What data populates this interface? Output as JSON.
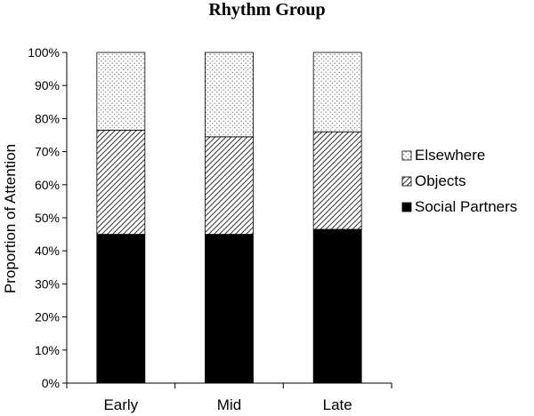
{
  "chart_data": {
    "type": "bar",
    "stacked": true,
    "title": "Rhythm Group",
    "xlabel": "",
    "ylabel": "Proportion of Attention",
    "categories": [
      "Early",
      "Mid",
      "Late"
    ],
    "ylim": [
      0,
      100
    ],
    "yticks": [
      "0%",
      "10%",
      "20%",
      "30%",
      "40%",
      "50%",
      "60%",
      "70%",
      "80%",
      "90%",
      "100%"
    ],
    "series": [
      {
        "name": "Social Partners",
        "values": [
          45,
          45,
          46.5
        ],
        "pattern": "solid"
      },
      {
        "name": "Objects",
        "values": [
          31.5,
          29.5,
          29.5
        ],
        "pattern": "diagonal-hatch"
      },
      {
        "name": "Elsewhere",
        "values": [
          23.5,
          25.5,
          24
        ],
        "pattern": "dots"
      }
    ],
    "legend_order": [
      "Elsewhere",
      "Objects",
      "Social Partners"
    ],
    "legend_position": "right",
    "grid": false
  }
}
